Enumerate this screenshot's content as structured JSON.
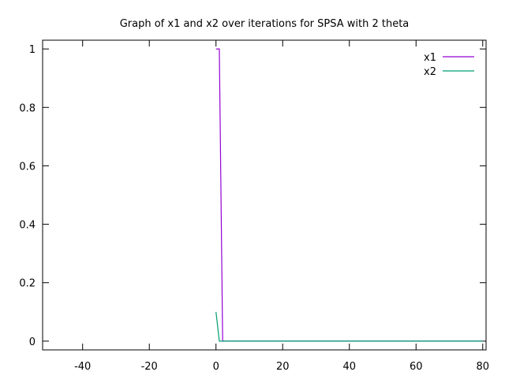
{
  "chart_data": {
    "type": "line",
    "title": "Graph of x1 and x2 over iterations for SPSA with 2 theta",
    "xlabel": "",
    "ylabel": "",
    "xlim": [
      -52,
      81
    ],
    "ylim": [
      -0.03,
      1.03
    ],
    "xticks": [
      -40,
      -20,
      0,
      20,
      40,
      60,
      80
    ],
    "yticks": [
      0,
      0.2,
      0.4,
      0.6,
      0.8,
      1
    ],
    "grid": false,
    "legend_position": "top-right",
    "series": [
      {
        "name": "x1",
        "color": "#9400d3",
        "x": [
          0,
          1,
          2,
          80
        ],
        "y": [
          1,
          1,
          0,
          0
        ]
      },
      {
        "name": "x2",
        "color": "#009e73",
        "x": [
          0,
          1,
          2,
          80
        ],
        "y": [
          0.1,
          0,
          0,
          0
        ]
      }
    ]
  }
}
